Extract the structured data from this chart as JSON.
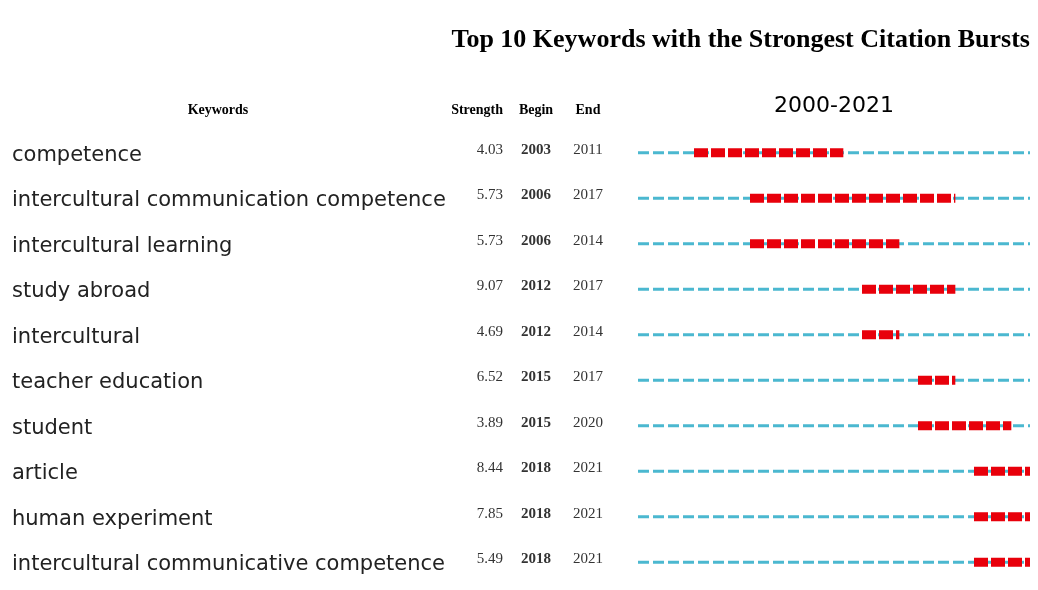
{
  "chart_data": {
    "type": "other",
    "title": "Top 10 Keywords with the Strongest Citation Bursts",
    "subtitle": "2000-2021",
    "ylabel": "Keywords",
    "categories": [
      "competence",
      "intercultural communication competence",
      "intercultural learning",
      "study abroad",
      "intercultural",
      "teacher education",
      "student",
      "article",
      "human experiment",
      "intercultural communicative competence"
    ],
    "data_labels": true,
    "series": [
      {
        "name": "Strength",
        "values": [
          4.03,
          5.73,
          5.73,
          9.07,
          4.69,
          6.52,
          3.89,
          8.44,
          7.85,
          5.49
        ]
      },
      {
        "name": "Begin",
        "values": [
          2003,
          2006,
          2006,
          2012,
          2012,
          2015,
          2015,
          2018,
          2018,
          2018
        ]
      },
      {
        "name": "End",
        "values": [
          2011,
          2017,
          2014,
          2017,
          2014,
          2017,
          2020,
          2021,
          2021,
          2021
        ]
      }
    ]
  }
}
